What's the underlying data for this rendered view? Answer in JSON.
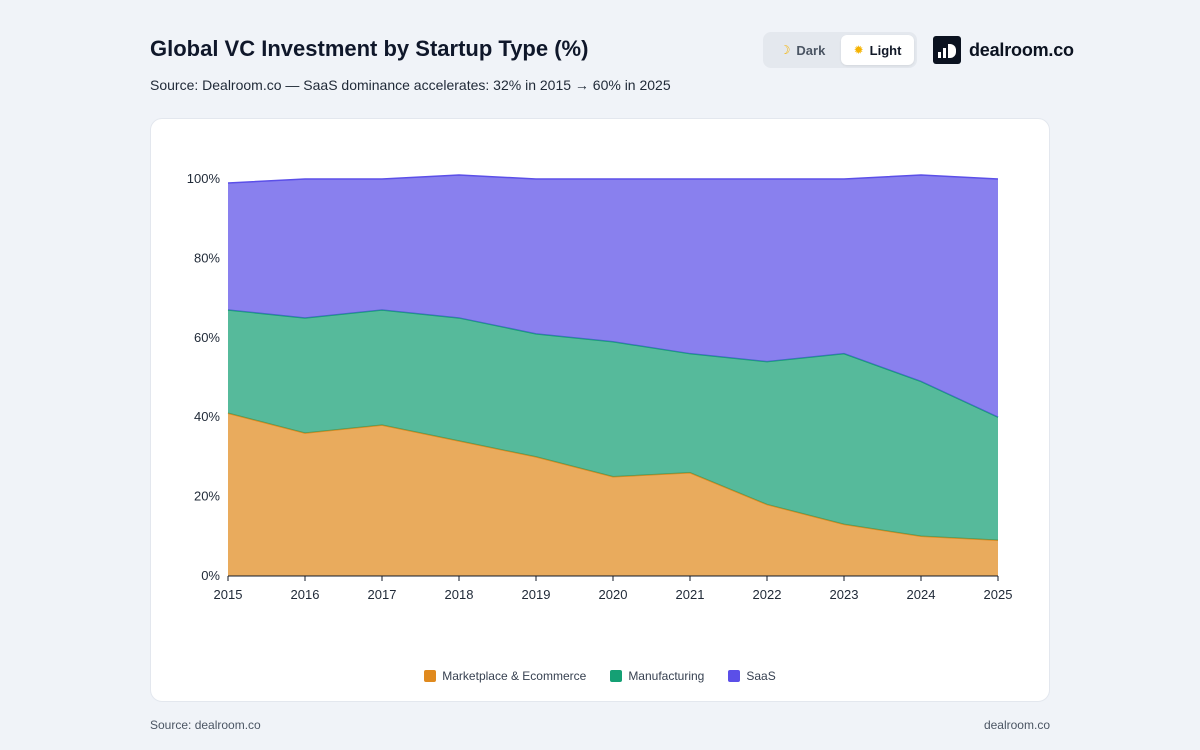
{
  "header": {
    "title": "Global VC Investment by Startup Type (%)",
    "subtitle": "Source: Dealroom.co — SaaS dominance accelerates: 32% in 2015 → 60% in 2025"
  },
  "theme_toggle": {
    "dark_label": "Dark",
    "light_label": "Light",
    "selected": "Light"
  },
  "brand": {
    "name": "dealroom.co"
  },
  "footer": {
    "left": "Source: dealroom.co",
    "right": "dealroom.co"
  },
  "chart_data": {
    "type": "area",
    "stacked": true,
    "title": "Global VC Investment by Startup Type (%)",
    "x": [
      "2015",
      "2016",
      "2017",
      "2018",
      "2019",
      "2020",
      "2021",
      "2022",
      "2023",
      "2024",
      "2025"
    ],
    "ylim": [
      0,
      100
    ],
    "yticks": [
      0,
      20,
      40,
      60,
      80,
      100
    ],
    "ytick_labels": [
      "0%",
      "20%",
      "40%",
      "60%",
      "80%",
      "100%"
    ],
    "grid": false,
    "legend_position": "bottom",
    "series": [
      {
        "name": "Marketplace & Ecommerce",
        "color": "#e08a1e",
        "values": [
          41,
          36,
          38,
          34,
          30,
          25,
          26,
          18,
          13,
          10,
          9
        ]
      },
      {
        "name": "Manufacturing",
        "color": "#15a074",
        "values": [
          26,
          29,
          29,
          31,
          31,
          34,
          30,
          36,
          43,
          39,
          31
        ]
      },
      {
        "name": "SaaS",
        "color": "#5b4fe8",
        "values": [
          32,
          35,
          33,
          36,
          39,
          41,
          44,
          46,
          44,
          52,
          60
        ]
      }
    ]
  }
}
